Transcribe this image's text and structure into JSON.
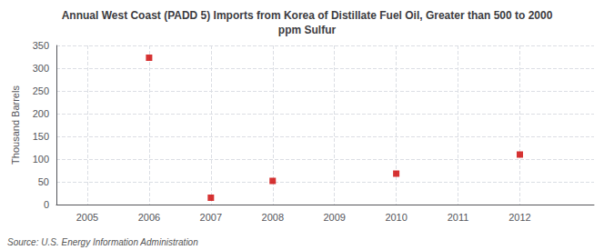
{
  "chart_data": {
    "type": "scatter",
    "title": "Annual West Coast (PADD 5) Imports from Korea of Distillate Fuel Oil, Greater than 500 to 2000\nppm Sulfur",
    "ylabel": "Thousand Barrels",
    "source": "Source: U.S. Energy Information Administration",
    "x": [
      2006,
      2007,
      2008,
      2010,
      2012
    ],
    "values": [
      323,
      15,
      52,
      68,
      110
    ],
    "color": "#cc0000",
    "marker": "square",
    "xlim": [
      2004.5,
      2013.2
    ],
    "xticks": [
      2005,
      2006,
      2007,
      2008,
      2009,
      2010,
      2011,
      2012
    ],
    "ylim": [
      0,
      350
    ],
    "yticks": [
      0,
      50,
      100,
      150,
      200,
      250,
      300,
      350
    ],
    "grid": true
  }
}
